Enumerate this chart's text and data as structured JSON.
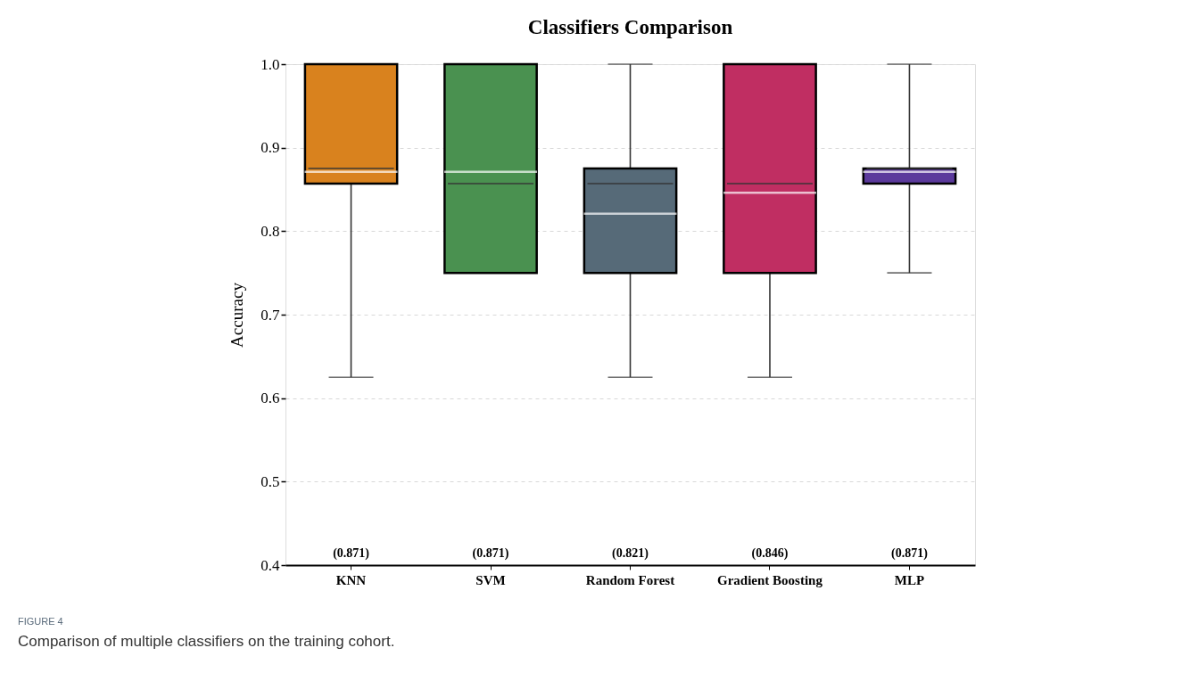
{
  "chart_data": {
    "type": "box",
    "title": "Classifiers Comparison",
    "ylabel": "Accuracy",
    "categories": [
      "KNN",
      "SVM",
      "Random Forest",
      "Gradient Boosting",
      "MLP"
    ],
    "colors": [
      "#d9821e",
      "#4a9150",
      "#566a78",
      "#c02e62",
      "#5b3a9c"
    ],
    "boxes": [
      {
        "low": 0.625,
        "q1": 0.857,
        "median": 0.875,
        "q3": 1.0,
        "high": 1.0,
        "mean": 0.871
      },
      {
        "low": 0.75,
        "q1": 0.75,
        "median": 0.857,
        "q3": 1.0,
        "high": 1.0,
        "mean": 0.871
      },
      {
        "low": 0.625,
        "q1": 0.75,
        "median": 0.857,
        "q3": 0.875,
        "high": 1.0,
        "mean": 0.821
      },
      {
        "low": 0.625,
        "q1": 0.75,
        "median": 0.857,
        "q3": 1.0,
        "high": 1.0,
        "mean": 0.846
      },
      {
        "low": 0.75,
        "q1": 0.857,
        "median": 0.875,
        "q3": 0.875,
        "high": 1.0,
        "mean": 0.871
      }
    ],
    "ylim": [
      0.4,
      1.0
    ],
    "yticks": [
      0.4,
      0.5,
      0.6,
      0.7,
      0.8,
      0.9,
      {
        "value": 1,
        "label": "1.0"
      }
    ],
    "grid": "y",
    "annotations": [
      "(0.871)",
      "(0.871)",
      "(0.821)",
      "(0.846)",
      "(0.871)",
      "FIGURE 4",
      "Comparison of multiple classifiers on the training cohort."
    ]
  }
}
